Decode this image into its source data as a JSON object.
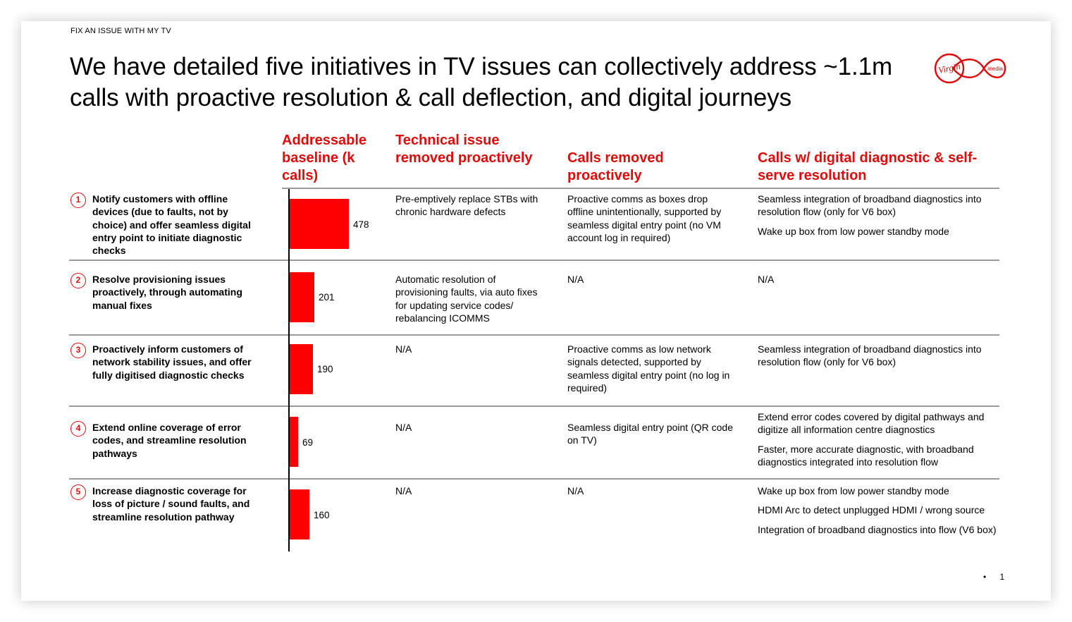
{
  "header": {
    "kicker": "FIX AN ISSUE WITH MY TV",
    "title": "We have detailed five initiatives in TV issues can collectively address ~1.1m calls with proactive resolution & call deflection, and digital journeys"
  },
  "logo": {
    "brand_text": "Virgin",
    "sub_text": "media",
    "color": "#e10a0a"
  },
  "columns": {
    "baseline": "Addressable baseline (k calls)",
    "technical": "Technical issue removed proactively",
    "calls_removed": "Calls removed proactively",
    "digital": "Calls w/ digital diagnostic & self-serve resolution"
  },
  "colors": {
    "accent": "#e10a0a",
    "bar": "#ff0000"
  },
  "rows": [
    {
      "num": "1",
      "label": "Notify customers with offline devices (due to faults, not by choice) and offer seamless digital entry point to initiate diagnostic checks",
      "value": 478,
      "value_label": "478",
      "technical": "Pre-emptively replace STBs with chronic hardware defects",
      "calls_removed": "Proactive comms as boxes drop offline unintentionally, supported by seamless digital entry point (no VM account log in required)",
      "digital": [
        "Seamless integration of broadband diagnostics into resolution flow (only for V6 box)",
        "Wake up box from low power standby mode"
      ]
    },
    {
      "num": "2",
      "label": "Resolve provisioning issues proactively, through automating manual fixes",
      "value": 201,
      "value_label": "201",
      "technical": "Automatic resolution of provisioning faults, via auto fixes for updating service codes/ rebalancing ICOMMS",
      "calls_removed": "N/A",
      "digital": [
        "N/A"
      ]
    },
    {
      "num": "3",
      "label": "Proactively inform customers of network stability issues, and offer fully digitised diagnostic checks",
      "value": 190,
      "value_label": "190",
      "technical": "N/A",
      "calls_removed": "Proactive comms as low network signals detected, supported by seamless digital entry point (no log in required)",
      "digital": [
        "Seamless integration of broadband diagnostics into resolution flow (only for V6 box)"
      ]
    },
    {
      "num": "4",
      "label": "Extend online coverage of error codes, and streamline resolution pathways",
      "value": 69,
      "value_label": "69",
      "technical": "N/A",
      "calls_removed": "Seamless digital entry point (QR code on TV)",
      "digital": [
        "Extend error codes covered by digital pathways and digitize all information centre diagnostics",
        "Faster, more accurate diagnostic, with broadband diagnostics integrated into resolution flow"
      ]
    },
    {
      "num": "5",
      "label": "Increase diagnostic coverage for loss of picture / sound faults, and streamline resolution pathway",
      "value": 160,
      "value_label": "160",
      "technical": "N/A",
      "calls_removed": "N/A",
      "digital": [
        "Wake up box from low power standby mode",
        "HDMI Arc to detect unplugged HDMI /  wrong source",
        "Integration of broadband diagnostics into flow  (V6 box)"
      ]
    }
  ],
  "footer": {
    "bullet": "•",
    "page_number": "1"
  }
}
